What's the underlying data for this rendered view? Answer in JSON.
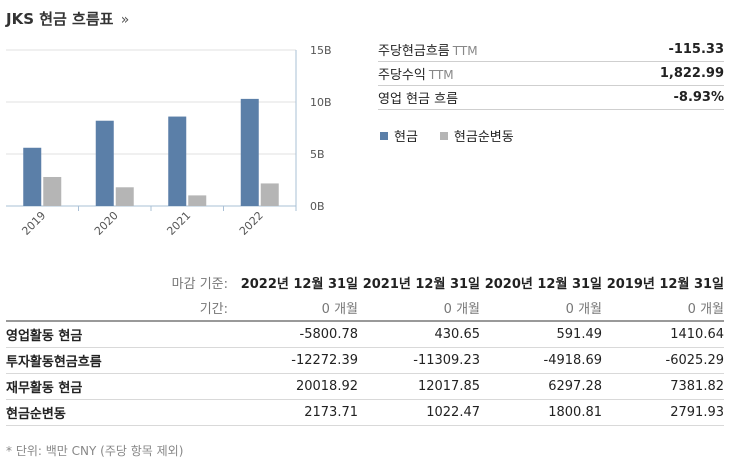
{
  "header": {
    "title": "JKS 현금 흐름표",
    "more": "»"
  },
  "chart_data": {
    "type": "bar",
    "categories": [
      "2019",
      "2020",
      "2021",
      "2022"
    ],
    "series": [
      {
        "name": "현금",
        "values": [
          5.6,
          8.2,
          8.6,
          10.3
        ],
        "color": "#5b7fa8"
      },
      {
        "name": "현금순변동",
        "values": [
          2.79,
          1.8,
          1.02,
          2.17
        ],
        "color": "#b5b5b5"
      }
    ],
    "y_ticks": [
      "15B",
      "10B",
      "5B",
      "0B"
    ],
    "ylim": [
      0,
      15
    ],
    "y_axis_side": "right",
    "grid": "horizontal"
  },
  "stats": [
    {
      "label": "주당현금흐름",
      "sub": "TTM",
      "value": "-115.33"
    },
    {
      "label": "주당수익",
      "sub": "TTM",
      "value": "1,822.99"
    },
    {
      "label": "영업 현금 흐름",
      "sub": "",
      "value": "-8.93%"
    }
  ],
  "legend": [
    {
      "label": "현금",
      "color": "#5b7fa8"
    },
    {
      "label": "현금순변동",
      "color": "#b5b5b5"
    }
  ],
  "table": {
    "period_end_label": "마감 기준:",
    "period_label": "기간:",
    "columns": [
      "2022년 12월 31일",
      "2021년 12월 31일",
      "2020년 12월 31일",
      "2019년 12월 31일"
    ],
    "periods": [
      "0 개월",
      "0 개월",
      "0 개월",
      "0 개월"
    ],
    "rows": [
      {
        "label": "영업활동 현금",
        "values": [
          "-5800.78",
          "430.65",
          "591.49",
          "1410.64"
        ]
      },
      {
        "label": "투자활동현금흐름",
        "values": [
          "-12272.39",
          "-11309.23",
          "-4918.69",
          "-6025.29"
        ]
      },
      {
        "label": "재무활동 현금",
        "values": [
          "20018.92",
          "12017.85",
          "6297.28",
          "7381.82"
        ]
      },
      {
        "label": "현금순변동",
        "values": [
          "2173.71",
          "1022.47",
          "1800.81",
          "2791.93"
        ]
      }
    ]
  },
  "footnote": "* 단위: 백만 CNY (주당 항목 제외)"
}
